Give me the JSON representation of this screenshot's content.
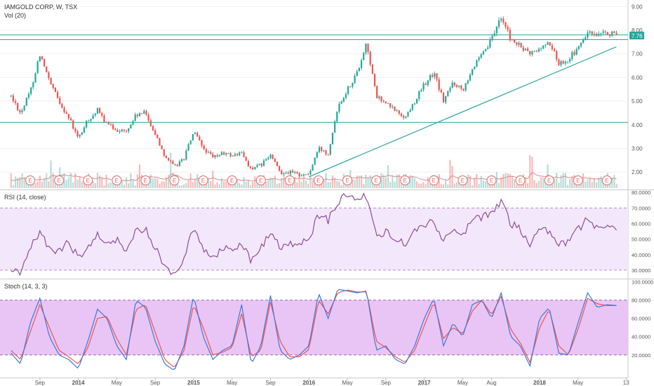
{
  "header": {
    "symbol_title": "IAMGOLD CORP, W, TSX",
    "volume_label": "Vol (20)",
    "last_price_tag": "7.76"
  },
  "rsi_panel": {
    "label": "RSI (14, close)"
  },
  "stoch_panel": {
    "label": "Stoch (14, 3, 3)"
  },
  "earnings_marker_glyph": "E",
  "colors": {
    "up": "#26a69a",
    "down": "#ef5350",
    "up_volume": "#b2dfdb",
    "down_volume": "#f8bbbb",
    "trend_line": "#26a69a",
    "rsi_line": "#8e4a9c",
    "rsi_band": "#f3e8fb",
    "stoch_band": "#e9c5f6",
    "stoch_k": "#3c78d8",
    "stoch_d": "#ef5350",
    "volume_ma": "#e08b8b",
    "price_tag_bg": "#26a69a"
  },
  "chart_data": [
    {
      "type": "candlestick",
      "title": "IAMGOLD CORP, W, TSX",
      "x_ticks": [
        "Sep",
        "2014",
        "May",
        "Sep",
        "2015",
        "May",
        "Sep",
        "2016",
        "May",
        "Sep",
        "2017",
        "May",
        "Aug",
        "2018",
        "May",
        "13"
      ],
      "y_ticks": [
        "2.00",
        "3.00",
        "4.00",
        "5.00",
        "6.00",
        "7.00",
        "8.00",
        "9.00"
      ],
      "ylim": [
        1.5,
        9.1
      ],
      "last_price": 7.76,
      "horizontal_lines": [
        7.6,
        7.8,
        4.1
      ],
      "trend_line": {
        "from": [
          "2016-01",
          1.8
        ],
        "to": [
          "2018-09",
          7.3
        ]
      },
      "path": [
        [
          "2013-06",
          5.2
        ],
        [
          "2013-07",
          4.5
        ],
        [
          "2013-08",
          5.4
        ],
        [
          "2013-09",
          7.0
        ],
        [
          "2013-10",
          5.8
        ],
        [
          "2013-11",
          5.0
        ],
        [
          "2013-12",
          4.3
        ],
        [
          "2014-01",
          3.4
        ],
        [
          "2014-02",
          4.2
        ],
        [
          "2014-03",
          4.6
        ],
        [
          "2014-04",
          4.0
        ],
        [
          "2014-05",
          3.8
        ],
        [
          "2014-06",
          3.7
        ],
        [
          "2014-07",
          4.4
        ],
        [
          "2014-08",
          4.5
        ],
        [
          "2014-09",
          3.6
        ],
        [
          "2014-10",
          2.7
        ],
        [
          "2014-11",
          2.2
        ],
        [
          "2014-12",
          2.6
        ],
        [
          "2015-01",
          3.7
        ],
        [
          "2015-02",
          3.0
        ],
        [
          "2015-03",
          2.6
        ],
        [
          "2015-04",
          2.8
        ],
        [
          "2015-05",
          2.7
        ],
        [
          "2015-06",
          2.8
        ],
        [
          "2015-07",
          2.1
        ],
        [
          "2015-08",
          2.3
        ],
        [
          "2015-09",
          2.7
        ],
        [
          "2015-10",
          2.0
        ],
        [
          "2015-11",
          2.0
        ],
        [
          "2015-12",
          1.9
        ],
        [
          "2016-01",
          1.9
        ],
        [
          "2016-02",
          3.0
        ],
        [
          "2016-03",
          2.8
        ],
        [
          "2016-04",
          4.8
        ],
        [
          "2016-05",
          5.5
        ],
        [
          "2016-06",
          6.2
        ],
        [
          "2016-07",
          7.5
        ],
        [
          "2016-08",
          5.2
        ],
        [
          "2016-09",
          4.9
        ],
        [
          "2016-10",
          4.6
        ],
        [
          "2016-11",
          4.3
        ],
        [
          "2016-12",
          5.0
        ],
        [
          "2017-01",
          5.7
        ],
        [
          "2017-02",
          6.2
        ],
        [
          "2017-03",
          5.0
        ],
        [
          "2017-04",
          5.8
        ],
        [
          "2017-05",
          5.5
        ],
        [
          "2017-06",
          6.4
        ],
        [
          "2017-07",
          6.9
        ],
        [
          "2017-08",
          7.6
        ],
        [
          "2017-09",
          8.6
        ],
        [
          "2017-10",
          7.6
        ],
        [
          "2017-11",
          7.3
        ],
        [
          "2017-12",
          7.0
        ],
        [
          "2018-01",
          7.2
        ],
        [
          "2018-02",
          7.5
        ],
        [
          "2018-03",
          6.6
        ],
        [
          "2018-04",
          6.8
        ],
        [
          "2018-05",
          7.2
        ],
        [
          "2018-06",
          7.9
        ],
        [
          "2018-07",
          7.7
        ],
        [
          "2018-08",
          7.9
        ],
        [
          "2018-09",
          7.76
        ]
      ]
    },
    {
      "type": "line",
      "title": "RSI (14, close)",
      "y_ticks": [
        "30.0000",
        "40.0000",
        "50.0000",
        "60.0000",
        "70.0000",
        "80.0000"
      ],
      "ylim": [
        25,
        81
      ],
      "band": [
        30,
        70
      ],
      "series": [
        {
          "name": "RSI (14, close)",
          "path": [
            [
              "2013-06",
              30
            ],
            [
              "2013-07",
              28
            ],
            [
              "2013-08",
              44
            ],
            [
              "2013-09",
              55
            ],
            [
              "2013-10",
              44
            ],
            [
              "2013-11",
              42
            ],
            [
              "2013-12",
              48
            ],
            [
              "2014-01",
              38
            ],
            [
              "2014-02",
              46
            ],
            [
              "2014-03",
              52
            ],
            [
              "2014-04",
              48
            ],
            [
              "2014-05",
              50
            ],
            [
              "2014-06",
              42
            ],
            [
              "2014-07",
              57
            ],
            [
              "2014-08",
              56
            ],
            [
              "2014-09",
              44
            ],
            [
              "2014-10",
              33
            ],
            [
              "2014-11",
              27
            ],
            [
              "2014-12",
              38
            ],
            [
              "2015-01",
              58
            ],
            [
              "2015-02",
              44
            ],
            [
              "2015-03",
              38
            ],
            [
              "2015-04",
              44
            ],
            [
              "2015-05",
              43
            ],
            [
              "2015-06",
              48
            ],
            [
              "2015-07",
              36
            ],
            [
              "2015-08",
              44
            ],
            [
              "2015-09",
              54
            ],
            [
              "2015-10",
              44
            ],
            [
              "2015-11",
              47
            ],
            [
              "2015-12",
              46
            ],
            [
              "2016-01",
              50
            ],
            [
              "2016-02",
              66
            ],
            [
              "2016-03",
              62
            ],
            [
              "2016-04",
              74
            ],
            [
              "2016-05",
              79
            ],
            [
              "2016-06",
              76
            ],
            [
              "2016-07",
              78
            ],
            [
              "2016-08",
              52
            ],
            [
              "2016-09",
              55
            ],
            [
              "2016-10",
              49
            ],
            [
              "2016-11",
              47
            ],
            [
              "2016-12",
              55
            ],
            [
              "2017-01",
              58
            ],
            [
              "2017-02",
              62
            ],
            [
              "2017-03",
              48
            ],
            [
              "2017-04",
              56
            ],
            [
              "2017-05",
              52
            ],
            [
              "2017-06",
              62
            ],
            [
              "2017-07",
              64
            ],
            [
              "2017-08",
              66
            ],
            [
              "2017-09",
              75
            ],
            [
              "2017-10",
              60
            ],
            [
              "2017-11",
              56
            ],
            [
              "2017-12",
              47
            ],
            [
              "2018-01",
              57
            ],
            [
              "2018-02",
              55
            ],
            [
              "2018-03",
              46
            ],
            [
              "2018-04",
              48
            ],
            [
              "2018-05",
              56
            ],
            [
              "2018-06",
              63
            ],
            [
              "2018-07",
              56
            ],
            [
              "2018-08",
              59
            ],
            [
              "2018-09",
              55
            ]
          ]
        }
      ]
    },
    {
      "type": "line",
      "title": "Stoch (14, 3, 3)",
      "y_ticks": [
        "20.0000",
        "40.0000",
        "60.0000",
        "80.0000",
        "100.0000"
      ],
      "ylim": [
        -4,
        102
      ],
      "band": [
        20,
        80
      ],
      "series": [
        {
          "name": "%K",
          "path": [
            [
              "2013-06",
              22
            ],
            [
              "2013-07",
              10
            ],
            [
              "2013-08",
              55
            ],
            [
              "2013-09",
              82
            ],
            [
              "2013-10",
              40
            ],
            [
              "2013-11",
              20
            ],
            [
              "2013-12",
              15
            ],
            [
              "2014-01",
              5
            ],
            [
              "2014-02",
              35
            ],
            [
              "2014-03",
              70
            ],
            [
              "2014-04",
              60
            ],
            [
              "2014-05",
              30
            ],
            [
              "2014-06",
              15
            ],
            [
              "2014-07",
              80
            ],
            [
              "2014-08",
              72
            ],
            [
              "2014-09",
              35
            ],
            [
              "2014-10",
              10
            ],
            [
              "2014-11",
              3
            ],
            [
              "2014-12",
              30
            ],
            [
              "2015-01",
              85
            ],
            [
              "2015-02",
              40
            ],
            [
              "2015-03",
              15
            ],
            [
              "2015-04",
              25
            ],
            [
              "2015-05",
              30
            ],
            [
              "2015-06",
              75
            ],
            [
              "2015-07",
              10
            ],
            [
              "2015-08",
              30
            ],
            [
              "2015-09",
              85
            ],
            [
              "2015-10",
              25
            ],
            [
              "2015-11",
              15
            ],
            [
              "2015-12",
              20
            ],
            [
              "2016-01",
              30
            ],
            [
              "2016-02",
              88
            ],
            [
              "2016-03",
              60
            ],
            [
              "2016-04",
              92
            ],
            [
              "2016-05",
              90
            ],
            [
              "2016-06",
              88
            ],
            [
              "2016-07",
              90
            ],
            [
              "2016-08",
              25
            ],
            [
              "2016-09",
              30
            ],
            [
              "2016-10",
              15
            ],
            [
              "2016-11",
              10
            ],
            [
              "2016-12",
              30
            ],
            [
              "2017-01",
              60
            ],
            [
              "2017-02",
              82
            ],
            [
              "2017-03",
              30
            ],
            [
              "2017-04",
              55
            ],
            [
              "2017-05",
              40
            ],
            [
              "2017-06",
              75
            ],
            [
              "2017-07",
              80
            ],
            [
              "2017-08",
              60
            ],
            [
              "2017-09",
              88
            ],
            [
              "2017-10",
              40
            ],
            [
              "2017-11",
              30
            ],
            [
              "2017-12",
              8
            ],
            [
              "2018-01",
              60
            ],
            [
              "2018-02",
              72
            ],
            [
              "2018-03",
              22
            ],
            [
              "2018-04",
              20
            ],
            [
              "2018-05",
              55
            ],
            [
              "2018-06",
              88
            ],
            [
              "2018-07",
              72
            ],
            [
              "2018-08",
              75
            ],
            [
              "2018-09",
              74
            ]
          ]
        },
        {
          "name": "%D",
          "path": [
            [
              "2013-06",
              25
            ],
            [
              "2013-07",
              15
            ],
            [
              "2013-08",
              45
            ],
            [
              "2013-09",
              75
            ],
            [
              "2013-10",
              50
            ],
            [
              "2013-11",
              25
            ],
            [
              "2013-12",
              18
            ],
            [
              "2014-01",
              10
            ],
            [
              "2014-02",
              28
            ],
            [
              "2014-03",
              60
            ],
            [
              "2014-04",
              62
            ],
            [
              "2014-05",
              38
            ],
            [
              "2014-06",
              20
            ],
            [
              "2014-07",
              70
            ],
            [
              "2014-08",
              75
            ],
            [
              "2014-09",
              45
            ],
            [
              "2014-10",
              15
            ],
            [
              "2014-11",
              6
            ],
            [
              "2014-12",
              25
            ],
            [
              "2015-01",
              75
            ],
            [
              "2015-02",
              50
            ],
            [
              "2015-03",
              20
            ],
            [
              "2015-04",
              23
            ],
            [
              "2015-05",
              28
            ],
            [
              "2015-06",
              65
            ],
            [
              "2015-07",
              18
            ],
            [
              "2015-08",
              25
            ],
            [
              "2015-09",
              78
            ],
            [
              "2015-10",
              35
            ],
            [
              "2015-11",
              18
            ],
            [
              "2015-12",
              18
            ],
            [
              "2016-01",
              26
            ],
            [
              "2016-02",
              80
            ],
            [
              "2016-03",
              65
            ],
            [
              "2016-04",
              88
            ],
            [
              "2016-05",
              91
            ],
            [
              "2016-06",
              89
            ],
            [
              "2016-07",
              89
            ],
            [
              "2016-08",
              35
            ],
            [
              "2016-09",
              28
            ],
            [
              "2016-10",
              18
            ],
            [
              "2016-11",
              12
            ],
            [
              "2016-12",
              25
            ],
            [
              "2017-01",
              52
            ],
            [
              "2017-02",
              78
            ],
            [
              "2017-03",
              38
            ],
            [
              "2017-04",
              50
            ],
            [
              "2017-05",
              43
            ],
            [
              "2017-06",
              68
            ],
            [
              "2017-07",
              80
            ],
            [
              "2017-08",
              64
            ],
            [
              "2017-09",
              84
            ],
            [
              "2017-10",
              48
            ],
            [
              "2017-11",
              33
            ],
            [
              "2017-12",
              12
            ],
            [
              "2018-01",
              50
            ],
            [
              "2018-02",
              70
            ],
            [
              "2018-03",
              30
            ],
            [
              "2018-04",
              20
            ],
            [
              "2018-05",
              48
            ],
            [
              "2018-06",
              82
            ],
            [
              "2018-07",
              76
            ],
            [
              "2018-08",
              74
            ],
            [
              "2018-09",
              74
            ]
          ]
        }
      ]
    }
  ]
}
